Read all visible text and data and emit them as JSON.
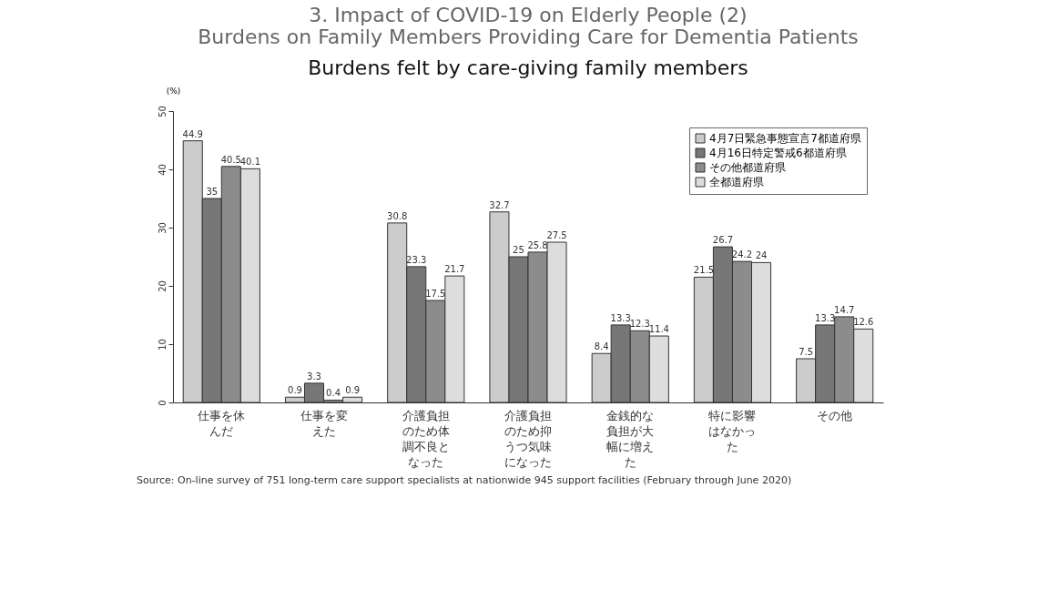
{
  "chart_data": {
    "type": "bar",
    "title": [
      "3. Impact of COVID-19 on Elderly People (2)",
      "Burdens on Family Members Providing Care for Dementia Patients"
    ],
    "subtitle": "Burdens felt by care-giving family members",
    "ylabel": "(%)",
    "categories": [
      "仕事を休んだ",
      "仕事を変えた",
      "介護負担のため体調不良となった",
      "介護負担のため抑うつ気味になった",
      "金銭的な負担が大幅に増えた",
      "特に影響はなかった",
      "その他"
    ],
    "series": [
      {
        "name": "4月7日緊急事態宣言7都道府県",
        "color": "#cccccc",
        "values": [
          44.9,
          0.9,
          30.8,
          32.7,
          8.4,
          21.5,
          7.5
        ]
      },
      {
        "name": "4月16日特定警戒6都道府県",
        "color": "#777777",
        "values": [
          35,
          3.3,
          23.3,
          25,
          13.3,
          26.7,
          13.3
        ]
      },
      {
        "name": "その他都道府県",
        "color": "#8c8c8c",
        "values": [
          40.5,
          0.4,
          17.5,
          25.8,
          12.3,
          24.2,
          14.7
        ]
      },
      {
        "name": "全都道府県",
        "color": "#dddddd",
        "values": [
          40.1,
          0.9,
          21.7,
          27.5,
          11.4,
          24,
          12.6
        ]
      }
    ],
    "ylim": [
      0,
      50
    ],
    "yticks": [
      0,
      10,
      20,
      30,
      40,
      50
    ],
    "data_labels": true,
    "legend": "top right",
    "grid": false,
    "annotations": [
      "Source: On-line survey of 751 long-term care support specialists at nationwide 945 support facilities (February through June 2020)"
    ]
  }
}
